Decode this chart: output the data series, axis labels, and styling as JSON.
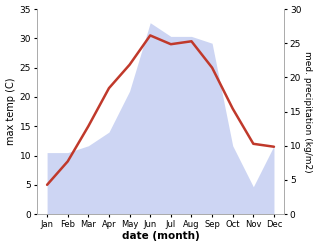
{
  "months": [
    "Jan",
    "Feb",
    "Mar",
    "Apr",
    "May",
    "Jun",
    "Jul",
    "Aug",
    "Sep",
    "Oct",
    "Nov",
    "Dec"
  ],
  "max_temp": [
    5.0,
    9.0,
    15.0,
    21.5,
    25.5,
    30.5,
    29.0,
    29.5,
    25.0,
    18.0,
    12.0,
    11.5
  ],
  "precipitation": [
    9.0,
    9.0,
    10.0,
    12.0,
    18.0,
    28.0,
    26.0,
    26.0,
    25.0,
    10.0,
    4.0,
    10.0
  ],
  "temp_ylim": [
    0,
    35
  ],
  "precip_ylim": [
    0,
    30
  ],
  "temp_color": "#c0392b",
  "precip_color": "#b8c4ee",
  "xlabel": "date (month)",
  "ylabel_left": "max temp (C)",
  "ylabel_right": "med. precipitation (kg/m2)",
  "temp_yticks": [
    0,
    5,
    10,
    15,
    20,
    25,
    30,
    35
  ],
  "precip_yticks": [
    0,
    5,
    10,
    15,
    20,
    25,
    30
  ],
  "bg_color": "#ffffff",
  "spine_color": "#aaaaaa"
}
